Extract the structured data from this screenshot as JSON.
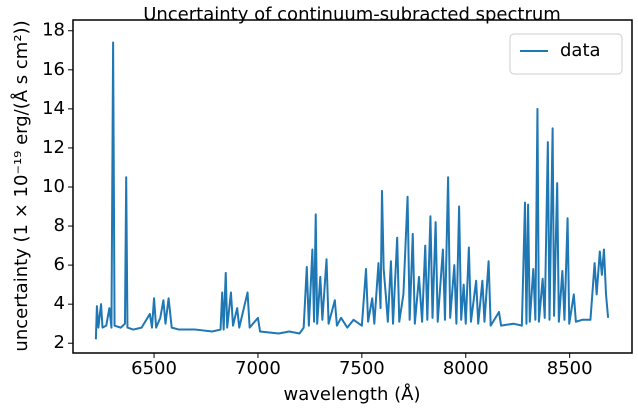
{
  "chart_data": {
    "type": "line",
    "title": "Uncertainty of continuum-subracted spectrum",
    "x_label": "wavelength (Å)",
    "y_label": "uncertainty (1 × 10⁻¹⁹ erg/(Å s cm²))",
    "x": [
      6220,
      6225,
      6232,
      6245,
      6252,
      6270,
      6285,
      6295,
      6303,
      6310,
      6340,
      6360,
      6366,
      6372,
      6400,
      6440,
      6480,
      6490,
      6500,
      6510,
      6530,
      6545,
      6555,
      6570,
      6585,
      6620,
      6700,
      6780,
      6820,
      6828,
      6835,
      6845,
      6852,
      6870,
      6880,
      6900,
      6910,
      6950,
      6960,
      7000,
      7010,
      7100,
      7150,
      7200,
      7220,
      7235,
      7245,
      7262,
      7270,
      7278,
      7285,
      7300,
      7310,
      7330,
      7340,
      7370,
      7380,
      7400,
      7430,
      7460,
      7500,
      7520,
      7530,
      7550,
      7560,
      7580,
      7590,
      7597,
      7605,
      7615,
      7625,
      7640,
      7650,
      7670,
      7680,
      7700,
      7720,
      7730,
      7745,
      7755,
      7775,
      7790,
      7805,
      7815,
      7830,
      7840,
      7855,
      7865,
      7890,
      7900,
      7915,
      7925,
      7945,
      7955,
      7968,
      7978,
      7990,
      8000,
      8015,
      8025,
      8050,
      8060,
      8080,
      8090,
      8110,
      8120,
      8160,
      8170,
      8230,
      8270,
      8285,
      8292,
      8300,
      8308,
      8325,
      8335,
      8345,
      8352,
      8370,
      8380,
      8395,
      8403,
      8418,
      8425,
      8440,
      8448,
      8465,
      8475,
      8490,
      8498,
      8520,
      8530,
      8560,
      8600,
      8620,
      8630,
      8645,
      8655,
      8665,
      8675,
      8685
    ],
    "series": [
      {
        "name": "data",
        "color": "#1f77b4",
        "values": [
          2.2,
          3.9,
          2.8,
          4.0,
          2.8,
          2.9,
          3.8,
          2.8,
          17.4,
          2.9,
          2.8,
          3.0,
          10.5,
          2.8,
          2.7,
          2.8,
          3.5,
          2.8,
          4.3,
          2.8,
          3.3,
          4.2,
          3.0,
          4.3,
          2.8,
          2.7,
          2.7,
          2.6,
          2.7,
          4.6,
          2.7,
          5.6,
          2.8,
          4.6,
          2.9,
          3.8,
          2.8,
          4.6,
          2.8,
          3.3,
          2.6,
          2.5,
          2.6,
          2.5,
          2.8,
          5.9,
          2.9,
          6.8,
          3.1,
          8.6,
          3.0,
          5.4,
          3.2,
          6.3,
          3.0,
          4.2,
          2.9,
          3.3,
          2.8,
          3.2,
          2.9,
          5.8,
          3.1,
          4.3,
          3.0,
          6.1,
          3.8,
          9.8,
          5.8,
          4.5,
          3.1,
          6.2,
          3.0,
          7.4,
          3.1,
          4.5,
          9.5,
          3.2,
          7.6,
          3.0,
          5.4,
          3.1,
          7.0,
          3.2,
          8.5,
          3.3,
          8.2,
          3.1,
          6.8,
          3.2,
          10.5,
          3.3,
          6.0,
          3.0,
          9.0,
          3.2,
          5.0,
          3.0,
          6.9,
          3.1,
          5.2,
          3.0,
          5.2,
          3.1,
          6.2,
          2.9,
          3.6,
          2.9,
          3.0,
          2.9,
          9.2,
          3.0,
          9.1,
          3.1,
          5.8,
          3.2,
          14.0,
          3.1,
          5.3,
          3.3,
          12.3,
          3.2,
          13.0,
          3.4,
          10.2,
          3.1,
          5.7,
          3.2,
          8.4,
          3.0,
          4.5,
          3.1,
          3.2,
          3.2,
          6.1,
          4.5,
          6.7,
          5.5,
          6.8,
          4.5,
          3.3
        ]
      }
    ],
    "xlim": [
      6110,
      8800
    ],
    "xticks": [
      6500,
      7000,
      7500,
      8000,
      8500
    ],
    "ylim": [
      1.5,
      18.55
    ],
    "yticks": [
      2,
      4,
      6,
      8,
      10,
      12,
      14,
      16,
      18
    ],
    "legend": "upper right"
  }
}
